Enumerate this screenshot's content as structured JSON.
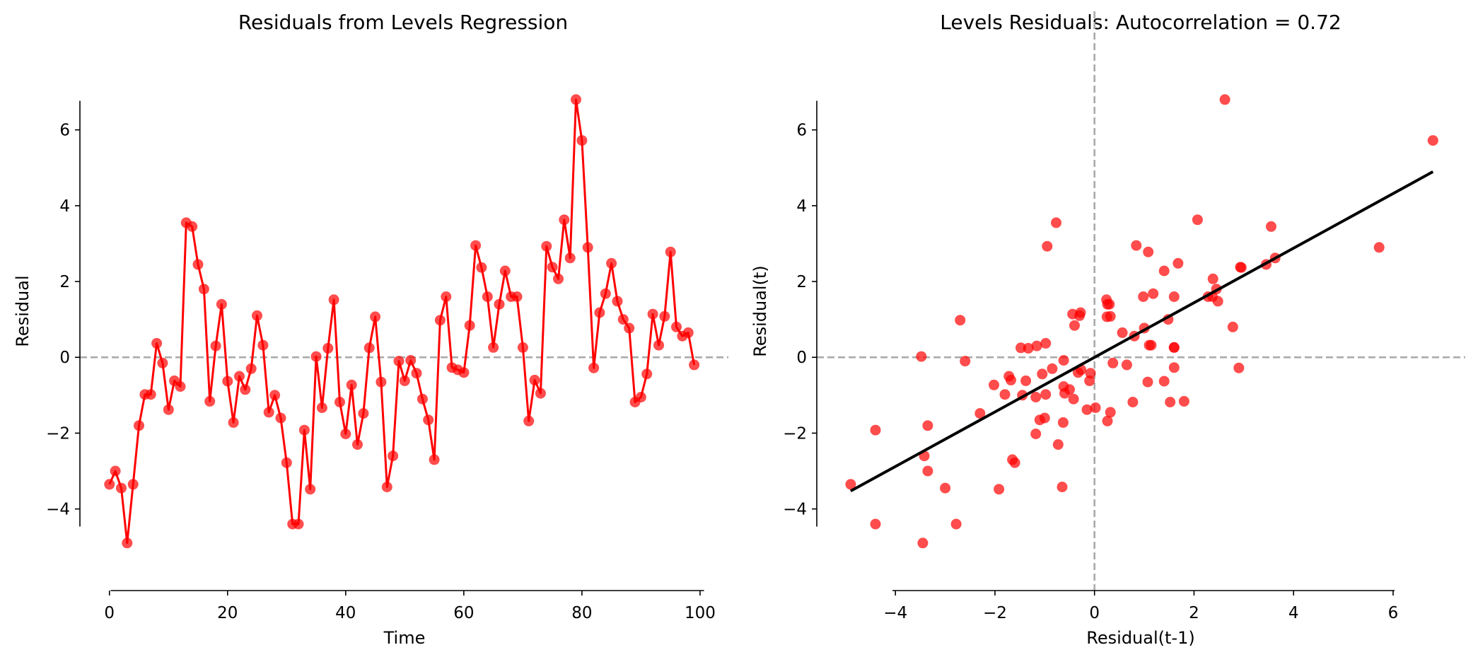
{
  "colors": {
    "series": "#ff0000",
    "reference_line": "#aaaaaa",
    "fit_line": "#000000",
    "axis": "#000000"
  },
  "chart_data": [
    {
      "type": "line",
      "title": "Residuals from Levels Regression",
      "xlabel": "Time",
      "ylabel": "Residual",
      "xlim": [
        -5,
        104.8
      ],
      "ylim": [
        -5.5,
        7.15
      ],
      "xticks": [
        0,
        20,
        40,
        60,
        80,
        100
      ],
      "yticks": [
        -4,
        -2,
        0,
        2,
        4,
        6
      ],
      "xtick_labels": [
        "0",
        "20",
        "40",
        "60",
        "80",
        "100"
      ],
      "ytick_labels": [
        "−4",
        "−2",
        "0",
        "2",
        "4",
        "6"
      ],
      "reference_line": {
        "orientation": "horizontal",
        "y": 0,
        "style": "dashed"
      },
      "grid": false,
      "markers": true,
      "x_start": 0,
      "x_step": 1,
      "y": [
        -3.35,
        -3.0,
        -3.45,
        -4.9,
        -3.35,
        -1.8,
        -0.98,
        -0.98,
        0.37,
        -0.15,
        -1.38,
        -0.62,
        -0.77,
        3.55,
        3.45,
        2.45,
        1.8,
        -1.16,
        0.3,
        1.4,
        -0.63,
        -1.72,
        -0.5,
        -0.85,
        -0.3,
        1.1,
        0.32,
        -1.45,
        -1.0,
        -1.6,
        -2.78,
        -4.4,
        -4.4,
        -1.92,
        -3.48,
        0.02,
        -1.33,
        0.24,
        1.52,
        -1.18,
        -2.02,
        -0.73,
        -2.3,
        -1.48,
        0.25,
        1.07,
        -0.65,
        -3.42,
        -2.6,
        -0.1,
        -0.62,
        -0.08,
        -0.42,
        -1.1,
        -1.65,
        -2.7,
        0.98,
        1.6,
        -0.27,
        -0.33,
        -0.4,
        0.84,
        2.95,
        2.37,
        1.6,
        0.26,
        1.4,
        2.28,
        1.6,
        1.6,
        0.26,
        -1.68,
        -0.6,
        -0.95,
        2.93,
        2.38,
        2.07,
        3.63,
        2.62,
        6.8,
        5.72,
        2.9,
        -0.28,
        1.18,
        1.68,
        2.48,
        1.48,
        1.0,
        0.77,
        -1.18,
        -1.05,
        -0.44,
        1.14,
        0.32,
        1.08,
        2.78,
        0.8,
        0.56,
        0.65,
        -0.2
      ]
    },
    {
      "type": "scatter",
      "title": "Levels Residuals: Autocorrelation = 0.72",
      "xlabel": "Residual(t-1)",
      "ylabel": "Residual(t)",
      "xlim": [
        -5.58,
        7.45
      ],
      "ylim": [
        -5.5,
        7.15
      ],
      "xticks": [
        -4,
        -2,
        0,
        2,
        4,
        6
      ],
      "yticks": [
        -4,
        -2,
        0,
        2,
        4,
        6
      ],
      "xtick_labels": [
        "−4",
        "−2",
        "0",
        "2",
        "4",
        "6"
      ],
      "ytick_labels": [
        "−4",
        "−2",
        "0",
        "2",
        "4",
        "6"
      ],
      "reference_lines": [
        {
          "orientation": "horizontal",
          "y": 0,
          "style": "dashed"
        },
        {
          "orientation": "vertical",
          "x": 0,
          "style": "dashed"
        }
      ],
      "regression_line": {
        "slope": 0.72,
        "intercept": 0.0,
        "x_range": [
          -4.9,
          6.8
        ]
      },
      "grid": false,
      "points_note": "each point is (y[t-1], y[t]) of the levels residual series"
    }
  ]
}
